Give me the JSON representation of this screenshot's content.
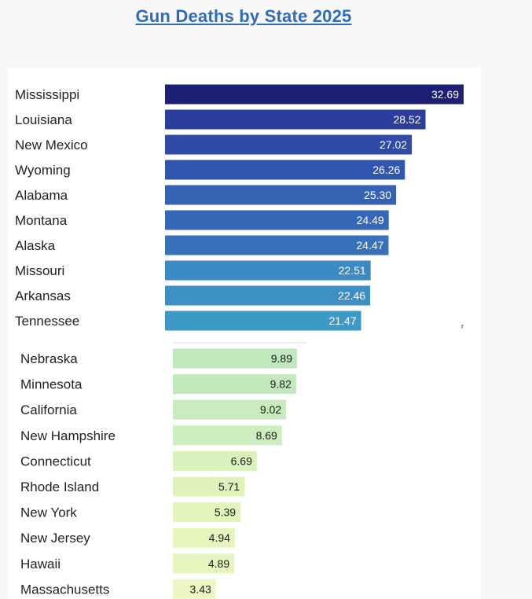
{
  "chart_data": [
    {
      "type": "bar",
      "orientation": "horizontal",
      "title": "Gun Deaths by State 2025",
      "group": "highest",
      "categories": [
        "Mississippi",
        "Louisiana",
        "New Mexico",
        "Wyoming",
        "Alabama",
        "Montana",
        "Alaska",
        "Missouri",
        "Arkansas",
        "Tennessee"
      ],
      "values": [
        32.69,
        28.52,
        27.02,
        26.26,
        25.3,
        24.49,
        24.47,
        22.51,
        22.46,
        21.47
      ],
      "labels": [
        "32.69",
        "28.52",
        "27.02",
        "26.26",
        "25.30",
        "24.49",
        "24.47",
        "22.51",
        "22.46",
        "21.47"
      ],
      "colors": [
        "#1d1f74",
        "#2c3e9c",
        "#2f4ba8",
        "#3156ad",
        "#3562b3",
        "#3569b7",
        "#3671ba",
        "#3b8ac2",
        "#3c90c4",
        "#3f99c6"
      ],
      "xlim": [
        0,
        32.69
      ]
    },
    {
      "type": "bar",
      "orientation": "horizontal",
      "group": "lowest",
      "categories": [
        "Nebraska",
        "Minnesota",
        "California",
        "New Hampshire",
        "Connecticut",
        "Rhode Island",
        "New York",
        "New Jersey",
        "Hawaii",
        "Massachusetts"
      ],
      "values": [
        9.89,
        9.82,
        9.02,
        8.69,
        6.69,
        5.71,
        5.39,
        4.94,
        4.89,
        3.43
      ],
      "labels": [
        "9.89",
        "9.82",
        "9.02",
        "8.69",
        "6.69",
        "5.71",
        "5.39",
        "4.94",
        "4.89",
        "3.43"
      ],
      "colors": [
        "#bfe8bd",
        "#c2e9be",
        "#c9ecbe",
        "#cdeebf",
        "#d9f2bd",
        "#def3bc",
        "#e1f4bc",
        "#e5f5bd",
        "#e6f5be",
        "#ecf7c4"
      ],
      "xlim": [
        0,
        9.89
      ]
    }
  ]
}
